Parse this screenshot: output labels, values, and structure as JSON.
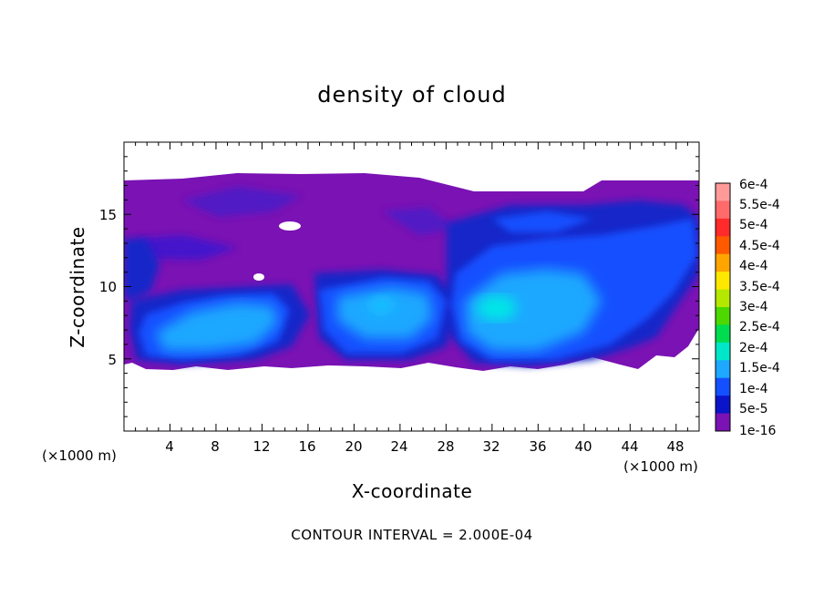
{
  "chart_data": {
    "type": "heatmap",
    "title": "density of cloud",
    "xlabel": "X-coordinate",
    "ylabel": "Z-coordinate",
    "x_unit_label": "(×1000 m)",
    "x_unit_label_right": "(×1000 m)",
    "xlim": [
      0,
      50
    ],
    "ylim": [
      0,
      20
    ],
    "xticks": [
      4,
      8,
      12,
      16,
      20,
      24,
      28,
      32,
      36,
      40,
      44,
      48
    ],
    "yticks": [
      5,
      10,
      15
    ],
    "colorbar": {
      "labels": [
        "6e-4",
        "5.5e-4",
        "5e-4",
        "4.5e-4",
        "4e-4",
        "3.5e-4",
        "3e-4",
        "2.5e-4",
        "2e-4",
        "1.5e-4",
        "1e-4",
        "5e-5",
        "1e-16"
      ],
      "colors": [
        "#ff9a9a",
        "#ff6a6a",
        "#ff2a2a",
        "#ff5a00",
        "#ffa500",
        "#ffe800",
        "#b4e800",
        "#4cd800",
        "#00dc50",
        "#00e6c8",
        "#1ea8ff",
        "#1450ff",
        "#0a14c8",
        "#7a12b4"
      ]
    },
    "regions": [
      {
        "level": "1e-16",
        "x": [
          0,
          50
        ],
        "z": [
          4.3,
          17.3
        ]
      },
      {
        "level": "5e-5",
        "x": [
          0,
          50
        ],
        "z": [
          5,
          16
        ]
      },
      {
        "level": "1e-4",
        "x": [
          2,
          48
        ],
        "z": [
          5.3,
          12.5
        ]
      },
      {
        "level": "1.5e-4",
        "x": [
          3,
          42
        ],
        "z": [
          5.8,
          10
        ]
      },
      {
        "level": "2e-4",
        "x": [
          31,
          34
        ],
        "z": [
          7.5,
          9.5
        ]
      }
    ],
    "annotation": "CONTOUR INTERVAL = 2.000E-04"
  }
}
